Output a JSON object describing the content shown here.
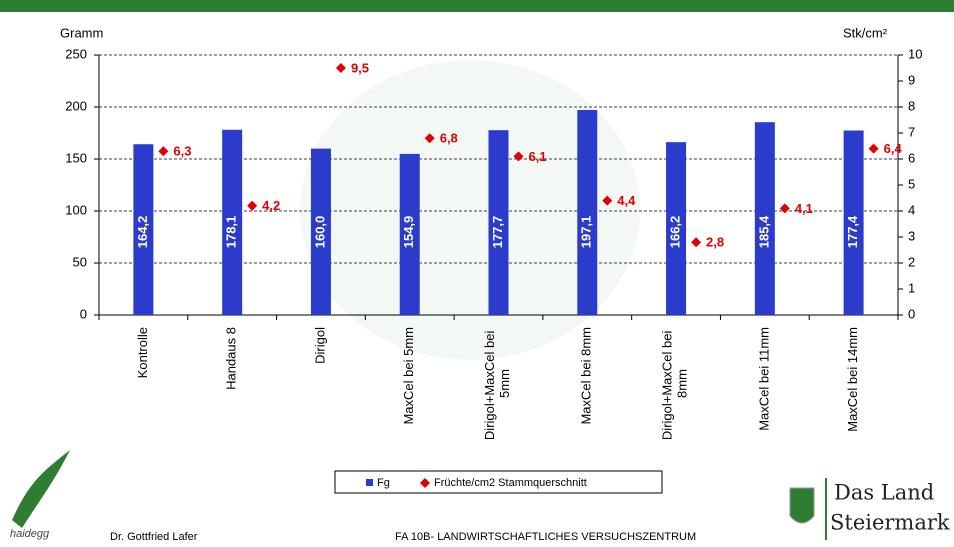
{
  "chart_data": {
    "type": "bar",
    "y_label": "Gramm",
    "y2_label": "Stk/cm²",
    "categories": [
      "Kontrolle",
      "Handaus 8",
      "Dirigol",
      "MaxCel bei 5mm",
      "Dirigol+MaxCel bei 5mm",
      "MaxCel bei 8mm",
      "Dirigol+MaxCel bei 8mm",
      "MaxCel bei 11mm",
      "MaxCel bei 14mm"
    ],
    "series": [
      {
        "name": "Fg",
        "color": "#2b3ccc",
        "values": [
          164.2,
          178.1,
          160.0,
          154.9,
          177.7,
          197.1,
          166.2,
          185.4,
          177.4
        ],
        "value_labels": [
          "164,2",
          "178,1",
          "160,0",
          "154,9",
          "177,7",
          "197,1",
          "166,2",
          "185,4",
          "177,4"
        ]
      },
      {
        "name": "Früchte/cm2 Stammquerschnitt",
        "color": "#e00000",
        "axis": "y2",
        "values": [
          6.3,
          4.2,
          9.5,
          6.8,
          6.1,
          4.4,
          2.8,
          4.1,
          6.4
        ],
        "value_labels": [
          "6,3",
          "4,2",
          "9,5",
          "6,8",
          "6,1",
          "4,4",
          "2,8",
          "4,1",
          "6,4"
        ]
      }
    ],
    "ylim": [
      0,
      250
    ],
    "yticks": [
      0,
      50,
      100,
      150,
      200,
      250
    ],
    "y2lim": [
      0,
      10
    ],
    "y2ticks": [
      0,
      1,
      2,
      3,
      4,
      5,
      6,
      7,
      8,
      9,
      10
    ],
    "grid": true,
    "legend": "bottom"
  },
  "footer": {
    "logo": "haidegg",
    "author": "Dr. Gottfried Lafer",
    "institute": "FA 10B- LANDWIRTSCHAFTLICHES VERSUCHSZENTRUM",
    "brand_line1": "Das Land",
    "brand_line2": "Steiermark"
  }
}
